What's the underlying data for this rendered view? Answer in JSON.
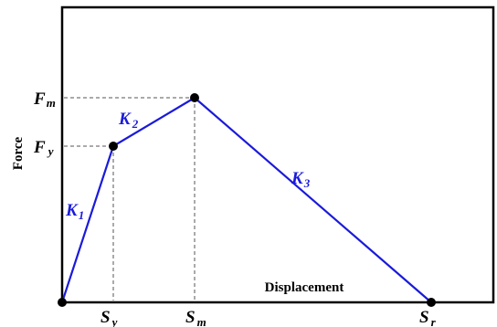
{
  "axes": {
    "y_axis_label": "Force",
    "x_axis_label": "Displacement"
  },
  "points": [
    {
      "id": "origin",
      "x_label": "",
      "y_label": ""
    },
    {
      "id": "yield",
      "x_label": {
        "base": "S",
        "sub": "y"
      },
      "y_label": {
        "base": "F",
        "sub": "y"
      }
    },
    {
      "id": "max",
      "x_label": {
        "base": "S",
        "sub": "m"
      },
      "y_label": {
        "base": "F",
        "sub": "m"
      }
    },
    {
      "id": "ultimate",
      "x_label": {
        "base": "S",
        "sub": "r"
      },
      "y_label": ""
    }
  ],
  "segments": [
    {
      "id": "k1",
      "label": {
        "base": "K",
        "sub": "1"
      }
    },
    {
      "id": "k2",
      "label": {
        "base": "K",
        "sub": "2"
      }
    },
    {
      "id": "k3",
      "label": {
        "base": "K",
        "sub": "3"
      }
    }
  ],
  "colors": {
    "curve": "#1a1adb",
    "labels_segments": "#1a1adb",
    "axes": "#000000",
    "points": "#000000",
    "guides": "#555555"
  }
}
